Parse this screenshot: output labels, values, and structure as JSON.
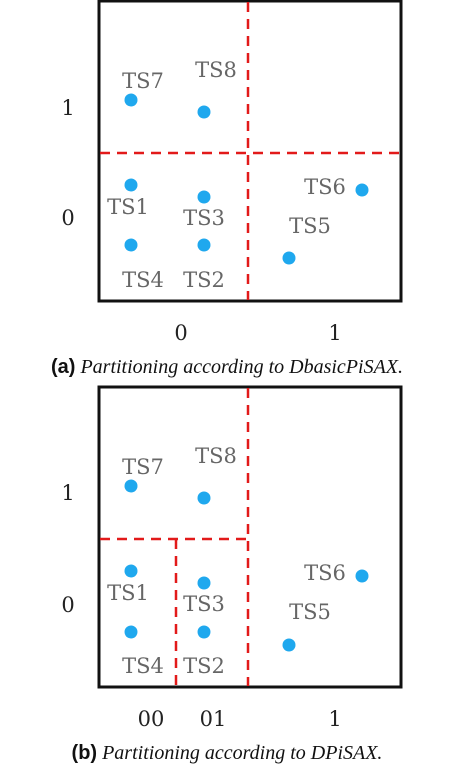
{
  "colors": {
    "point": "#1fa8ee",
    "partition": "#e21a1a",
    "label": "#666666",
    "frame": "#111111",
    "axis_text": "#222222"
  },
  "figures": [
    {
      "panel_label": "(a)",
      "caption": "Partitioning according to DbasicPiSAX.",
      "y_tick_labels": [
        "1",
        "0"
      ],
      "x_tick_labels": [
        "0",
        "1"
      ],
      "series": [
        {
          "name": "TS7"
        },
        {
          "name": "TS8"
        },
        {
          "name": "TS1"
        },
        {
          "name": "TS3"
        },
        {
          "name": "TS4"
        },
        {
          "name": "TS2"
        },
        {
          "name": "TS6"
        },
        {
          "name": "TS5"
        }
      ]
    },
    {
      "panel_label": "(b)",
      "caption": "Partitioning according to DPiSAX.",
      "y_tick_labels": [
        "1",
        "0"
      ],
      "x_tick_labels": [
        "00",
        "01",
        "1"
      ],
      "series": [
        {
          "name": "TS7"
        },
        {
          "name": "TS8"
        },
        {
          "name": "TS1"
        },
        {
          "name": "TS3"
        },
        {
          "name": "TS4"
        },
        {
          "name": "TS2"
        },
        {
          "name": "TS6"
        },
        {
          "name": "TS5"
        }
      ]
    }
  ]
}
